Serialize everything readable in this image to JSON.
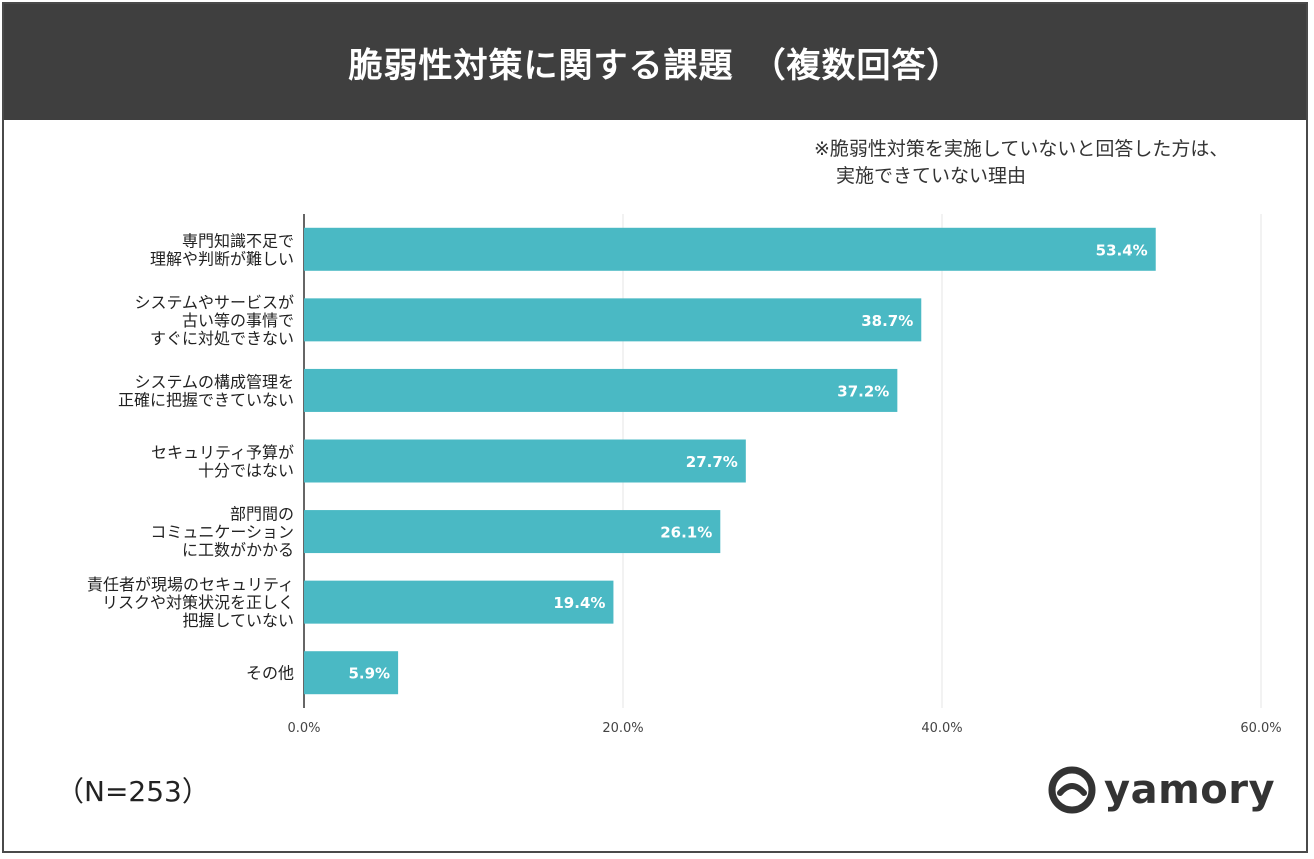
{
  "title": "脆弱性対策に関する課題　（複数回答）",
  "note_line1": "※脆弱性対策を実施していないと回答した方は、",
  "note_line2": "実施できていない理由",
  "sample_size": "（N=253）",
  "logo_text": "yamory",
  "colors": {
    "bar": "#4ab9c4",
    "header": "#3f3f3f",
    "axis": "#333333",
    "grid": "#e6e6e6"
  },
  "chart_data": {
    "type": "bar",
    "orientation": "horizontal",
    "categories": [
      [
        "専門知識不足で",
        "理解や判断が難しい"
      ],
      [
        "システムやサービスが",
        "古い等の事情で",
        "すぐに対処できない"
      ],
      [
        "システムの構成管理を",
        "正確に把握できていない"
      ],
      [
        "セキュリティ予算が",
        "十分ではない"
      ],
      [
        "部門間の",
        "コミュニケーション",
        "に工数がかかる"
      ],
      [
        "責任者が現場のセキュリティ",
        "リスクや対策状況を正しく",
        "把握していない"
      ],
      [
        "その他"
      ]
    ],
    "values": [
      53.4,
      38.7,
      37.2,
      27.7,
      26.1,
      19.4,
      5.9
    ],
    "data_labels": [
      "53.4%",
      "38.7%",
      "37.2%",
      "27.7%",
      "26.1%",
      "19.4%",
      "5.9%"
    ],
    "xlim": [
      0,
      60
    ],
    "x_ticks": [
      0,
      20,
      40,
      60
    ],
    "x_tick_labels": [
      "0.0%",
      "20.0%",
      "40.0%",
      "60.0%"
    ],
    "grid": true
  }
}
